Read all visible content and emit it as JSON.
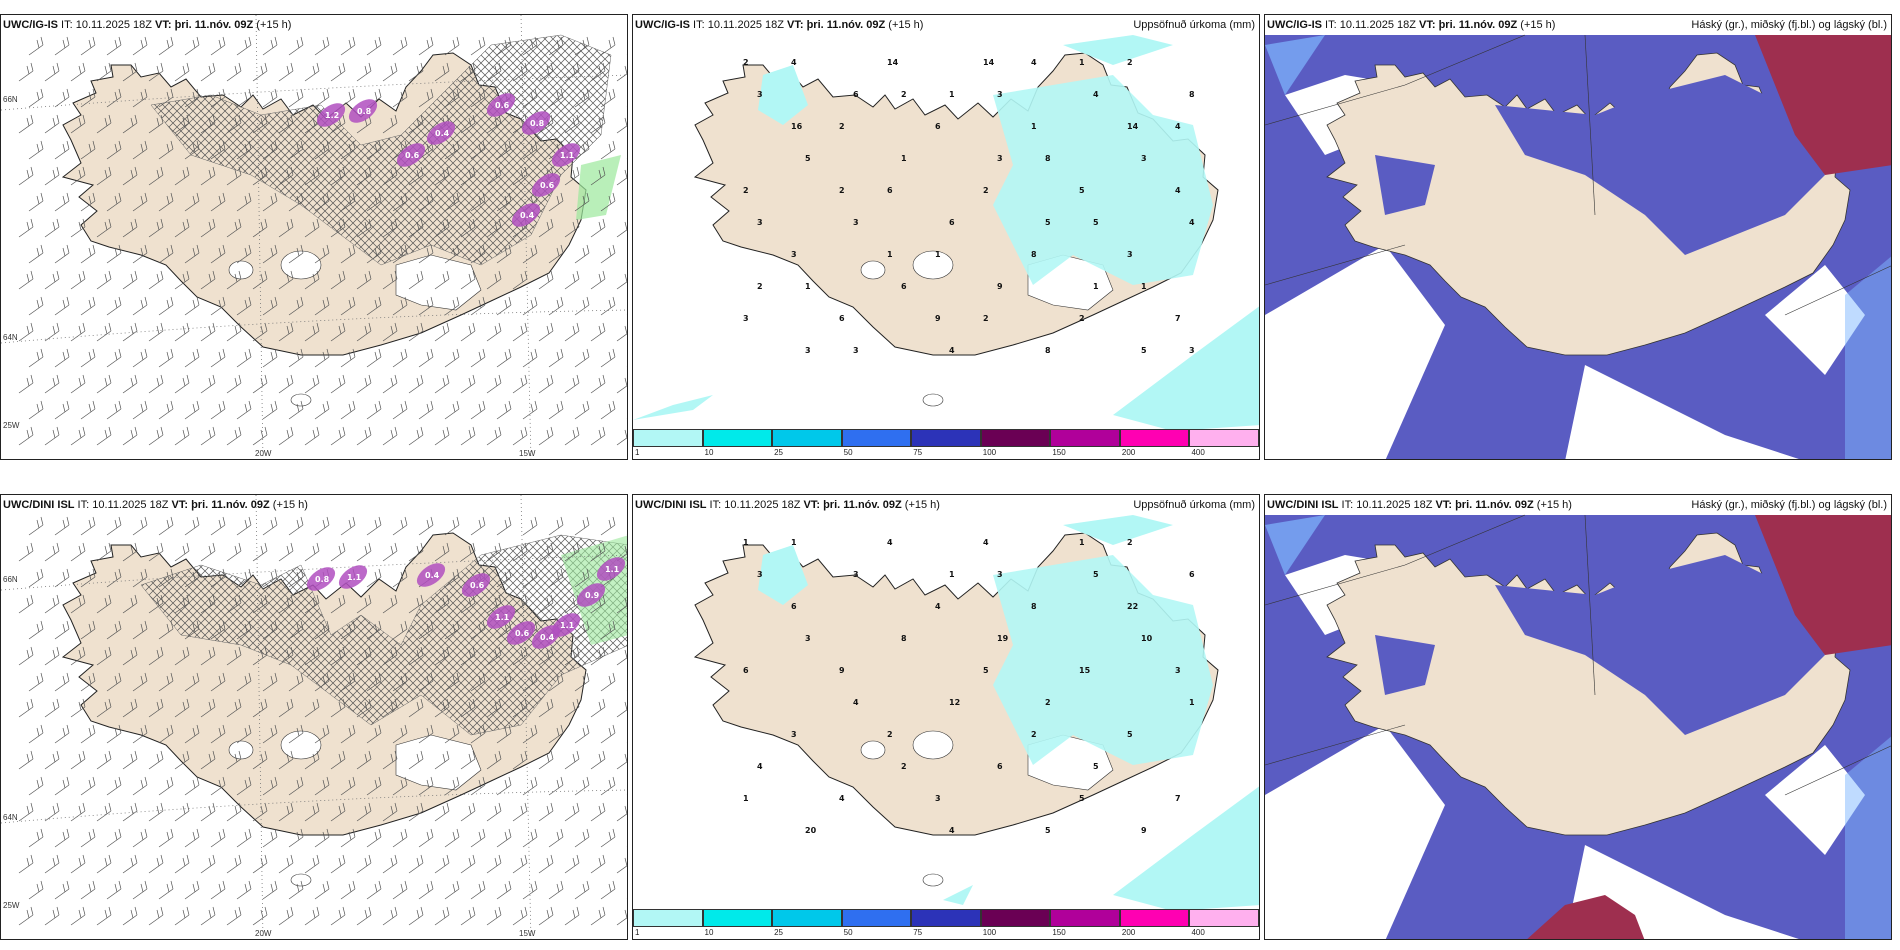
{
  "colors": {
    "land": "#efe1cf",
    "sea": "#ffffff",
    "precip_light": "#b2f7f5",
    "low_cloud": "#5a5cc2",
    "high_cloud": "#9e2f4f",
    "mid_cloud": "#7fb8ff",
    "snow_purple": "#b04fbf",
    "colorbar": [
      "#b2f7f5",
      "#00eaea",
      "#00c8ea",
      "#2f6ff0",
      "#2c33b8",
      "#6a0054",
      "#b0009a",
      "#ff00b2",
      "#ffb0ee"
    ]
  },
  "rows": [
    {
      "panel_a": {
        "title_prefix": "UWC/IG-IS",
        "title_mid": " IT: 10.11.2025 18Z ",
        "title_vt": "VT: þri. 11.nóv. 09Z",
        "title_suffix": " (+15 h)"
      },
      "panel_b": {
        "title_prefix": "UWC/IG-IS",
        "title_mid": " IT: 10.11.2025 18Z ",
        "title_vt": "VT: þri. 11.nóv. 09Z",
        "title_suffix": " (+15 h)",
        "right_title": "Uppsöfnuð úrkoma (mm)"
      },
      "panel_c": {
        "title_prefix": "UWC/IG-IS",
        "title_mid": " IT: 10.11.2025 18Z ",
        "title_vt": "VT: þri. 11.nóv. 09Z",
        "title_suffix": " (+15 h)",
        "right_title": "Háský (gr.), miðský (fj.bl.) og lágský (bl.)"
      }
    },
    {
      "panel_a": {
        "title_prefix": "UWC/DINI ISL",
        "title_mid": " IT: 10.11.2025 18Z ",
        "title_vt": "VT: þri. 11.nóv. 09Z",
        "title_suffix": " (+15 h)"
      },
      "panel_b": {
        "title_prefix": "UWC/DINI ISL",
        "title_mid": " IT: 10.11.2025 18Z ",
        "title_vt": "VT: þri. 11.nóv. 09Z",
        "title_suffix": " (+15 h)",
        "right_title": "Uppsöfnuð úrkoma (mm)"
      },
      "panel_c": {
        "title_prefix": "UWC/DINI ISL",
        "title_mid": " IT: 10.11.2025 18Z ",
        "title_vt": "VT: þri. 11.nóv. 09Z",
        "title_suffix": " (+15 h)",
        "right_title": "Háský (gr.), miðský (fj.bl.) og lágský (bl.)"
      }
    }
  ],
  "graticule_labels": {
    "lat_66": "66N",
    "lat_64": "64N",
    "lat_25w": "25W",
    "lon_20": "20W",
    "lon_15": "15W"
  },
  "colorbar_labels": [
    "1",
    "10",
    "25",
    "50",
    "75",
    "100",
    "150",
    "200",
    "400"
  ],
  "precip_values_top": [
    "2",
    "1",
    "1",
    "16",
    "14",
    "3",
    "2",
    "4",
    "5",
    "1",
    "2",
    "1",
    "9",
    "3",
    "5",
    "14",
    "6",
    "8",
    "1",
    "1",
    "2",
    "5",
    "6",
    "3",
    "3",
    "9",
    "6",
    "7",
    "8",
    "14",
    "3",
    "4",
    "6",
    "5",
    "3",
    "2",
    "3",
    "4",
    "8",
    "6",
    "3",
    "2",
    "4",
    "4",
    "2",
    "3",
    "2",
    "4",
    "8",
    "6",
    "3",
    "5",
    "1",
    "1",
    "1",
    "2",
    "3",
    "3",
    "4",
    "2"
  ],
  "precip_values_bottom": [
    "1",
    "1",
    "1",
    "6",
    "22",
    "19",
    "9",
    "3",
    "2",
    "2",
    "4",
    "5",
    "3",
    "20",
    "9",
    "4",
    "3",
    "6",
    "8",
    "8",
    "6",
    "15",
    "12",
    "3",
    "5",
    "6",
    "4",
    "7",
    "5",
    "4",
    "3",
    "5",
    "4",
    "3",
    "10",
    "5",
    "4",
    "1",
    "2",
    "2",
    "1",
    "5",
    "4",
    "1",
    "2",
    "3"
  ],
  "snow_values_top": [
    "1.2",
    "0.8",
    "0.6",
    "0.4",
    "0.6",
    "0.8",
    "1.1",
    "0.6",
    "0.4"
  ],
  "snow_values_bottom": [
    "0.8",
    "1.1",
    "0.4",
    "0.6",
    "1.1",
    "0.6",
    "0.4",
    "1.1",
    "0.9",
    "1.1"
  ]
}
